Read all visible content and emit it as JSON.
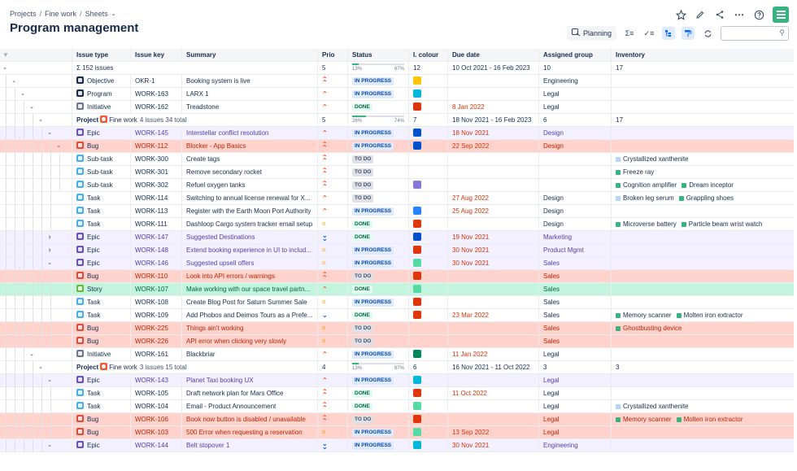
{
  "breadcrumb": [
    "Projects",
    "Fine work",
    "Sheets"
  ],
  "page_title": "Program management",
  "toolbar": {
    "planning_label": "Planning",
    "search_placeholder": ""
  },
  "columns": [
    "Issue type",
    "Issue key",
    "Summary",
    "Prio",
    "Status",
    "I. colour",
    "Due date",
    "Assigned group",
    "Inventory"
  ],
  "colors": {
    "objective": "#172b4d",
    "program": "#172b4d",
    "initiative": "#6b778c",
    "epic": "#6554c0",
    "bug": "#e5493a",
    "subtask": "#4bade8",
    "task": "#4bade8",
    "story": "#63ba3c",
    "project": "#ff5630",
    "accent": "#0065ff"
  },
  "rows": [
    {
      "level": 0,
      "chev": "down",
      "kind": "summary",
      "type_text": "Σ 152 issues",
      "prio": "5",
      "pct_lo": "13%",
      "pct_hi": "67%",
      "pct_fill": 0.13,
      "colour_count": "12",
      "due": "10 Oct 2021 - 16 Feb 2023",
      "group": "10",
      "inv": "17"
    },
    {
      "level": 1,
      "chev": "down",
      "type": "Objective",
      "icon": "objective",
      "key": "OKR-1",
      "summary": "Booking system is live",
      "prio": "highest",
      "status": "IN PROGRESS",
      "swatch": "#ffc400",
      "due": "",
      "group": "Engineering",
      "inv": []
    },
    {
      "level": 2,
      "chev": "down",
      "type": "Program",
      "icon": "program",
      "key": "WORK-163",
      "summary": "LARX 1",
      "prio": "high",
      "status": "IN PROGRESS",
      "swatch": "#00b8d9",
      "due": "",
      "group": "Legal",
      "inv": []
    },
    {
      "level": 3,
      "chev": "down",
      "type": "Initiative",
      "icon": "initiative",
      "key": "WORK-162",
      "summary": "Treadstone",
      "prio": "high",
      "status": "DONE",
      "swatch": "#de350b",
      "due": "8 Jan 2022",
      "due_red": true,
      "group": "Legal",
      "inv": []
    },
    {
      "level": 4,
      "chev": "down",
      "kind": "project",
      "proj_name": "Fine work",
      "proj_sub": "4 issues  34 total",
      "prio": "5",
      "pct_lo": "26%",
      "pct_hi": "74%",
      "pct_fill": 0.26,
      "colour_count": "7",
      "due": "18 Nov 2021 - 16 Feb 2023",
      "group": "6",
      "inv": "17"
    },
    {
      "level": 5,
      "chev": "down",
      "type": "Epic",
      "icon": "epic",
      "key": "WORK-145",
      "summary": "Interstellar conflict resolution",
      "prio": "high",
      "status": "IN PROGRESS",
      "swatch": "#0052cc",
      "due": "18 Nov 2021",
      "due_red": true,
      "group": "Design",
      "inv": [],
      "bg": "#f3f0ff"
    },
    {
      "level": 6,
      "chev": "down",
      "type": "Bug",
      "icon": "bug",
      "key": "WORK-112",
      "summary": "Blocker - App Basics",
      "prio": "highest",
      "status": "IN PROGRESS",
      "swatch": "#0052cc",
      "due": "22 Sep 2022",
      "due_red": true,
      "group": "Design",
      "inv": [],
      "bg": "#ffd2cc"
    },
    {
      "level": 7,
      "type": "Sub-task",
      "icon": "subtask",
      "key": "WORK-300",
      "summary": "Create tags",
      "prio": "highest",
      "status": "TO DO",
      "swatch": "",
      "due": "",
      "group": "",
      "inv": [
        {
          "c": "#b3d4ff",
          "t": "Crystallized xanthenite"
        }
      ]
    },
    {
      "level": 7,
      "type": "Sub-task",
      "icon": "subtask",
      "key": "WORK-301",
      "summary": "Remove secondary rocket",
      "prio": "highest",
      "status": "TO DO",
      "swatch": "",
      "due": "",
      "group": "",
      "inv": [
        {
          "c": "#36b37e",
          "t": "Freeze ray"
        }
      ]
    },
    {
      "level": 7,
      "type": "Sub-task",
      "icon": "subtask",
      "key": "WORK-302",
      "summary": "Refuel oxygen tanks",
      "prio": "highest",
      "status": "TO DO",
      "swatch": "#8777d9",
      "due": "",
      "group": "",
      "inv": [
        {
          "c": "#36b37e",
          "t": "Cognition amplifier"
        },
        {
          "c": "#36b37e",
          "t": "Dream inceptor"
        }
      ]
    },
    {
      "level": 6,
      "type": "Task",
      "icon": "task",
      "key": "WORK-114",
      "summary": "Switching to annual license renewal for X...",
      "prio": "high",
      "status": "TO DO",
      "swatch": "",
      "due": "27 Aug 2022",
      "due_red": true,
      "group": "Design",
      "inv": [
        {
          "c": "#b3d4ff",
          "t": "Broken leg serum"
        },
        {
          "c": "#36b37e",
          "t": "Grappling shoes"
        }
      ]
    },
    {
      "level": 6,
      "type": "Task",
      "icon": "task",
      "key": "WORK-113",
      "summary": "Register with the Earth Moon Port Authority",
      "prio": "high",
      "status": "IN PROGRESS",
      "swatch": "#2684ff",
      "due": "25 Aug 2022",
      "due_red": true,
      "group": "Design",
      "inv": []
    },
    {
      "level": 6,
      "type": "Task",
      "icon": "task",
      "key": "WORK-111",
      "summary": "Dashloop Cargo system tracker email setup",
      "prio": "medium",
      "status": "DONE",
      "swatch": "#de350b",
      "due": "",
      "group": "Design",
      "inv": [
        {
          "c": "#36b37e",
          "t": "Microverse battery"
        },
        {
          "c": "#36b37e",
          "t": "Particle beam wrist watch"
        }
      ]
    },
    {
      "level": 5,
      "chev": "right",
      "type": "Epic",
      "icon": "epic",
      "key": "WORK-147",
      "summary": "Suggested Destinations",
      "prio": "lowest",
      "status": "DONE",
      "swatch": "#0052cc",
      "due": "19 Nov 2021",
      "due_red": true,
      "group": "Marketing",
      "inv": [],
      "bg": "#f3f0ff"
    },
    {
      "level": 5,
      "chev": "right",
      "type": "Epic",
      "icon": "epic",
      "key": "WORK-148",
      "summary": "Extend booking experience in UI to includ...",
      "prio": "medium",
      "status": "IN PROGRESS",
      "swatch": "#de350b",
      "due": "30 Nov 2021",
      "due_red": true,
      "group": "Product Mgmt",
      "inv": [],
      "bg": "#f3f0ff"
    },
    {
      "level": 5,
      "chev": "down",
      "type": "Epic",
      "icon": "epic",
      "key": "WORK-146",
      "summary": "Suggested upsell offers",
      "prio": "medium",
      "status": "IN PROGRESS",
      "swatch": "#57d9a3",
      "due": "30 Nov 2021",
      "due_red": true,
      "group": "Sales",
      "inv": [],
      "bg": "#f3f0ff"
    },
    {
      "level": 6,
      "type": "Bug",
      "icon": "bug",
      "key": "WORK-110",
      "summary": "Look into API errors / warnings",
      "prio": "highest",
      "status": "TO DO",
      "swatch": "#de350b",
      "due": "",
      "group": "Sales",
      "inv": [],
      "bg": "#ffd2cc"
    },
    {
      "level": 6,
      "type": "Story",
      "icon": "story",
      "key": "WORK-107",
      "summary": "Make working with our space travel partn...",
      "prio": "high",
      "status": "DONE",
      "swatch": "#57d9a3",
      "due": "",
      "group": "Sales",
      "inv": [],
      "bg": "#c3f5de"
    },
    {
      "level": 6,
      "type": "Task",
      "icon": "task",
      "key": "WORK-108",
      "summary": "Create Blog Post for Saturn Summer Sale",
      "prio": "medium",
      "status": "IN PROGRESS",
      "swatch": "#de350b",
      "due": "",
      "group": "Sales",
      "inv": []
    },
    {
      "level": 6,
      "type": "Task",
      "icon": "task",
      "key": "WORK-109",
      "summary": "Add Phobos and Deimos Tours as a Prefe...",
      "prio": "low",
      "status": "DONE",
      "swatch": "#de350b",
      "due": "23 Mar 2022",
      "due_red": true,
      "group": "Sales",
      "inv": [
        {
          "c": "#36b37e",
          "t": "Memory scanner"
        },
        {
          "c": "#36b37e",
          "t": "Molten iron extractor"
        }
      ]
    },
    {
      "level": 6,
      "type": "Bug",
      "icon": "bug",
      "key": "WORK-225",
      "summary": "Things ain't working",
      "prio": "medium",
      "status": "TO DO",
      "swatch": "",
      "due": "",
      "group": "Sales",
      "inv": [
        {
          "c": "#36b37e",
          "t": "Ghostbusting device"
        }
      ],
      "bg": "#ffd2cc"
    },
    {
      "level": 6,
      "type": "Bug",
      "icon": "bug",
      "key": "WORK-226",
      "summary": "API error when clicking very slowly",
      "prio": "medium",
      "status": "TO DO",
      "swatch": "",
      "due": "",
      "group": "Sales",
      "inv": [],
      "bg": "#ffd2cc"
    },
    {
      "level": 3,
      "chev": "down",
      "type": "Initiative",
      "icon": "initiative",
      "key": "WORK-161",
      "summary": "Blackbriar",
      "prio": "high",
      "status": "IN PROGRESS",
      "swatch": "#00875a",
      "due": "11 Jan 2022",
      "due_red": true,
      "group": "Legal",
      "inv": []
    },
    {
      "level": 4,
      "chev": "down",
      "kind": "project",
      "proj_name": "Fine work",
      "proj_sub": "3 issues  15 total",
      "prio": "4",
      "pct_lo": "13%",
      "pct_hi": "87%",
      "pct_fill": 0.13,
      "colour_count": "6",
      "due": "16 Nov 2021 - 11 Oct 2022",
      "group": "3",
      "inv": "3"
    },
    {
      "level": 5,
      "chev": "down",
      "type": "Epic",
      "icon": "epic",
      "key": "WORK-143",
      "summary": "Planet Taxi booking UX",
      "prio": "high",
      "status": "IN PROGRESS",
      "swatch": "#00b8d9",
      "due": "",
      "group": "Legal",
      "inv": [],
      "bg": "#f3f0ff"
    },
    {
      "level": 6,
      "type": "Task",
      "icon": "task",
      "key": "WORK-105",
      "summary": "Draft network plan for Mars Office",
      "prio": "highest",
      "status": "DONE",
      "swatch": "#de350b",
      "due": "11 Oct 2022",
      "due_red": true,
      "group": "Legal",
      "inv": []
    },
    {
      "level": 6,
      "type": "Task",
      "icon": "task",
      "key": "WORK-104",
      "summary": "Email - Product Announcement",
      "prio": "highest",
      "status": "DONE",
      "swatch": "#57d9a3",
      "due": "",
      "group": "Legal",
      "inv": [
        {
          "c": "#b3d4ff",
          "t": "Crystallized xanthenite"
        }
      ]
    },
    {
      "level": 6,
      "type": "Bug",
      "icon": "bug",
      "key": "WORK-106",
      "summary": "Book now button is disabled / unavailable",
      "prio": "highest",
      "status": "TO DO",
      "swatch": "#de350b",
      "due": "",
      "group": "Legal",
      "inv": [
        {
          "c": "#36b37e",
          "t": "Memory scanner"
        },
        {
          "c": "#36b37e",
          "t": "Molten iron extractor"
        }
      ],
      "bg": "#ffd2cc"
    },
    {
      "level": 6,
      "type": "Bug",
      "icon": "bug",
      "key": "WORK-103",
      "summary": "500 Error when requesting a reservation",
      "prio": "medium",
      "status": "IN PROGRESS",
      "swatch": "#57d9a3",
      "due": "13 Sep 2022",
      "due_red": true,
      "group": "Legal",
      "inv": [],
      "bg": "#ffd2cc"
    },
    {
      "level": 5,
      "chev": "down",
      "type": "Epic",
      "icon": "epic",
      "key": "WORK-144",
      "summary": "Belt stopover 1",
      "prio": "lowest",
      "status": "IN PROGRESS",
      "swatch": "#00b8d9",
      "due": "30 Nov 2021",
      "due_red": true,
      "group": "Engineering",
      "inv": [],
      "bg": "#f3f0ff"
    }
  ]
}
